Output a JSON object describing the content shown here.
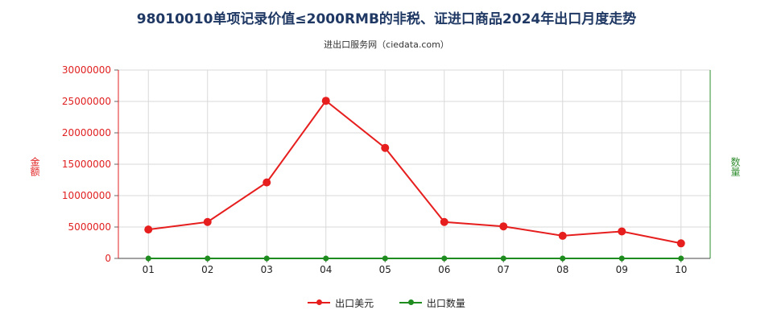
{
  "title": "98010010单项记录价值≤2000RMB的非税、证进口商品2024年出口月度走势",
  "subtitle": "进出口服务网（ciedata.com）",
  "colors": {
    "export_value": "#e61e1e",
    "export_qty": "#1e8c1e"
  },
  "chart_data": {
    "type": "line",
    "title": "98010010单项记录价值≤2000RMB的非税、证进口商品2024年出口月度走势",
    "categories": [
      "01",
      "02",
      "03",
      "04",
      "05",
      "06",
      "07",
      "08",
      "09",
      "10"
    ],
    "ylabel_left": "金额",
    "ylabel_right": "数量",
    "ylim": [
      0,
      30000000
    ],
    "yticks": [
      0,
      5000000,
      10000000,
      15000000,
      20000000,
      25000000,
      30000000
    ],
    "ytick_labels": [
      "0",
      "5000000",
      "10000000",
      "15000000",
      "20000000",
      "25000000",
      "30000000"
    ],
    "grid": true,
    "legend_position": "bottom",
    "series": [
      {
        "name": "出口美元",
        "values": [
          4600000,
          5800000,
          12100000,
          25100000,
          17600000,
          5800000,
          5100000,
          3600000,
          4300000,
          2400000
        ]
      },
      {
        "name": "出口数量",
        "values": [
          0,
          0,
          0,
          0,
          0,
          0,
          0,
          0,
          0,
          0
        ]
      }
    ]
  }
}
